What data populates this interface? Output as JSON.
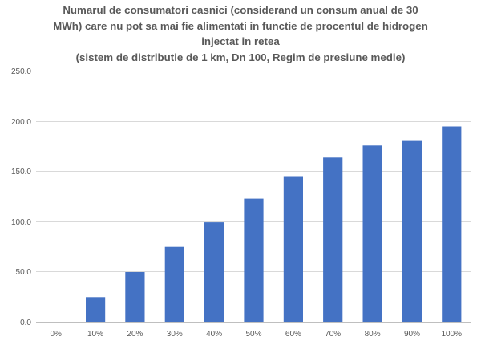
{
  "chart_data": {
    "type": "bar",
    "title_lines": [
      "Numarul de consumatori casnici (considerand un consum anual de 30",
      "MWh) care nu pot sa mai fie alimentati in functie de procentul de hidrogen",
      "injectat in retea",
      "(sistem de distributie de 1 km, Dn 100, Regim de presiune medie)"
    ],
    "categories": [
      "0%",
      "10%",
      "20%",
      "30%",
      "40%",
      "50%",
      "60%",
      "70%",
      "80%",
      "90%",
      "100%"
    ],
    "values": [
      0,
      24.5,
      49.5,
      74.5,
      99,
      122.5,
      145,
      163.5,
      175.5,
      180,
      194.5
    ],
    "y_ticks": [
      "0.0",
      "50.0",
      "100.0",
      "150.0",
      "200.0",
      "250.0"
    ],
    "ylim": [
      0,
      250
    ],
    "grid": true,
    "legend": "none",
    "bar_color": "#4472C4"
  }
}
